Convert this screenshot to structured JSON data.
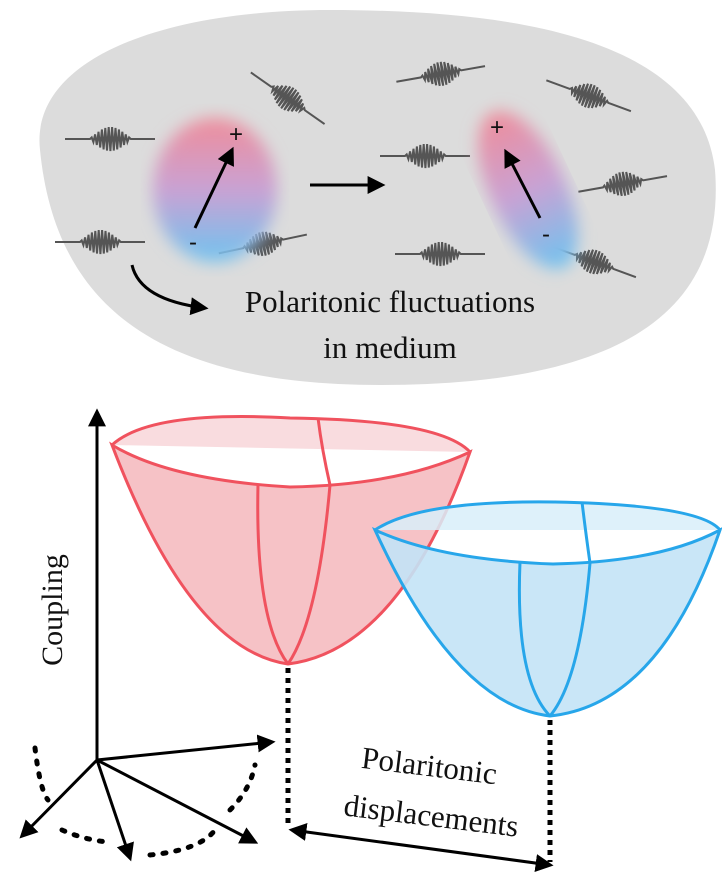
{
  "top_panel": {
    "dipoles": [
      {
        "plus": "+",
        "minus": "-"
      },
      {
        "plus": "+",
        "minus": "-"
      }
    ],
    "caption": [
      "Polaritonic fluctuations",
      "in medium"
    ]
  },
  "bottom_panel": {
    "axis_label": "Coupling",
    "displacement_label": [
      "Polaritonic",
      "displacements"
    ]
  }
}
